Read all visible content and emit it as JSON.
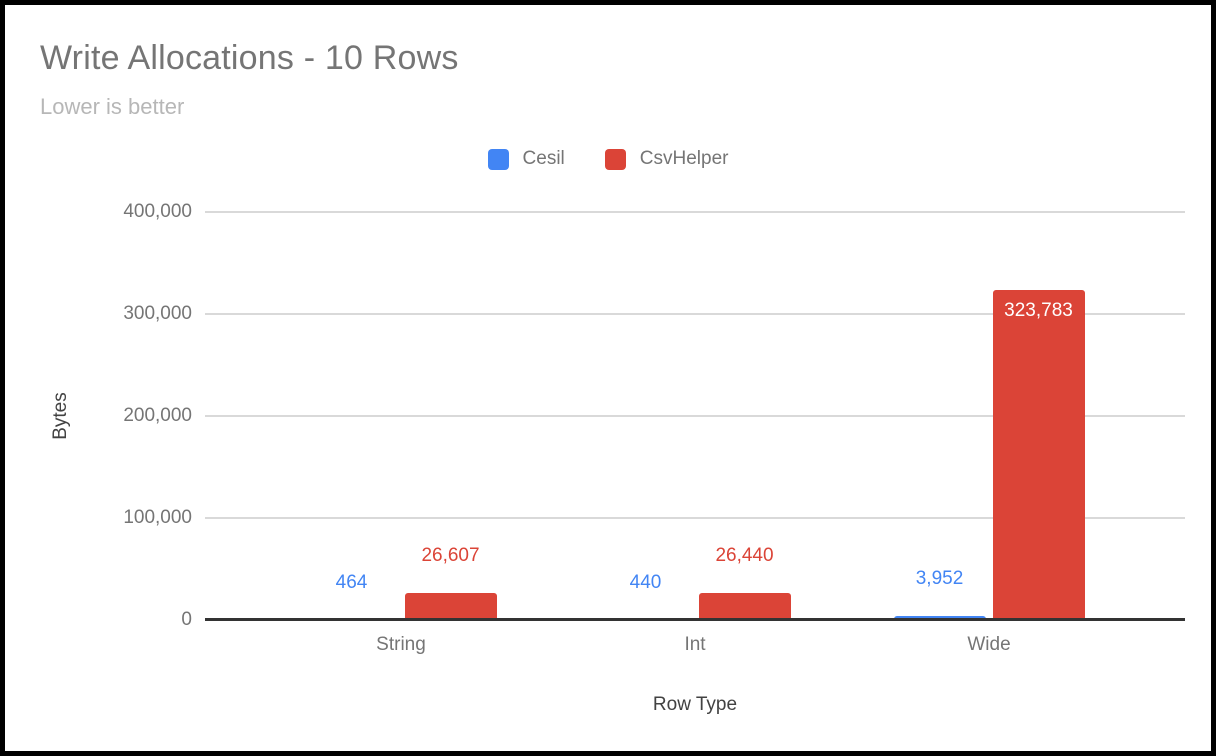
{
  "chart_data": {
    "type": "bar",
    "title": "Write Allocations - 10 Rows",
    "subtitle": "Lower is better",
    "categories": [
      "String",
      "Int",
      "Wide"
    ],
    "series": [
      {
        "name": "Cesil",
        "color": "#4285F4",
        "values": [
          464,
          440,
          3952
        ],
        "labels": [
          "464",
          "440",
          "3,952"
        ]
      },
      {
        "name": "CsvHelper",
        "color": "#DB4437",
        "values": [
          26607,
          26440,
          323783
        ],
        "labels": [
          "26,607",
          "26,440",
          "323,783"
        ]
      }
    ],
    "xlabel": "Row Type",
    "ylabel": "Bytes",
    "ylim": [
      0,
      400000
    ],
    "yticks": [
      {
        "value": 0,
        "label": "0"
      },
      {
        "value": 100000,
        "label": "100,000"
      },
      {
        "value": 200000,
        "label": "200,000"
      },
      {
        "value": 300000,
        "label": "300,000"
      },
      {
        "value": 400000,
        "label": "400,000"
      }
    ],
    "grid": true,
    "legend_position": "top-center",
    "colors": {
      "title_text": "#757575",
      "subtitle_text": "#b7b7b7",
      "tick_text": "#757575",
      "axis_title_text": "#424242",
      "gridline": "#d9d9d9",
      "baseline": "#333333",
      "frame_border": "#000000",
      "background": "#ffffff"
    }
  }
}
